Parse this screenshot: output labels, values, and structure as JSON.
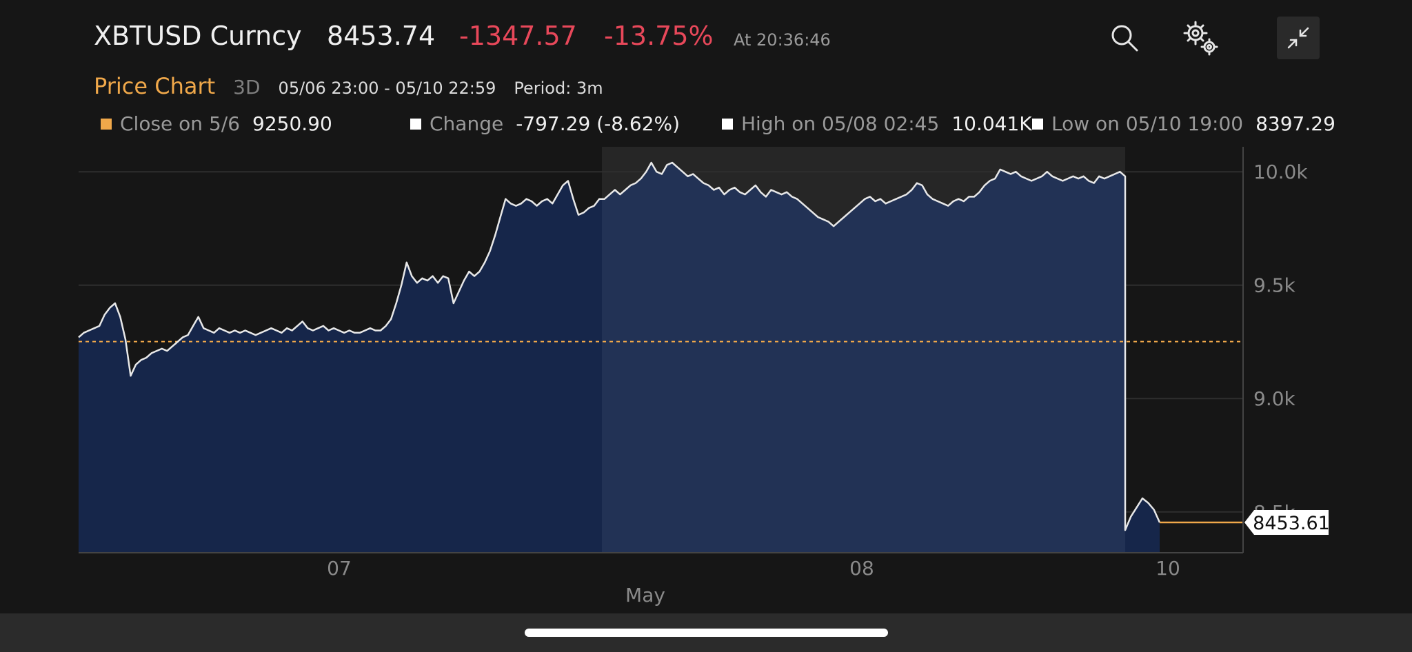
{
  "header": {
    "ticker": "XBTUSD Curncy",
    "price": "8453.74",
    "change_abs": "-1347.57",
    "change_pct": "-13.75%",
    "timestamp": "At 20:36:46",
    "icons": {
      "search": "search-icon",
      "settings": "gears-icon",
      "collapse": "collapse-icon"
    }
  },
  "subheader": {
    "title": "Price Chart",
    "range": "3D",
    "date_range": "05/06 23:00 - 05/10 22:59",
    "period": "Period: 3m"
  },
  "stats": [
    {
      "label": "Close on 5/6",
      "value": "9250.90",
      "color": "#f0a84a"
    },
    {
      "label": "Change",
      "value": "-797.29 (-8.62%)",
      "color": "#ffffff"
    },
    {
      "label": "High on 05/08 02:45",
      "value": "10.041K",
      "color": "#ffffff"
    },
    {
      "label": "Low on 05/10 19:00",
      "value": "8397.29",
      "color": "#ffffff"
    }
  ],
  "colors": {
    "negative": "#e8485a",
    "accent": "#f0a84a",
    "area_fill": "#16264a",
    "highlight_fill": "#223255",
    "line": "#e8e8e8"
  },
  "chart_data": {
    "type": "area",
    "ylim": [
      8320,
      10110
    ],
    "y_ticks": [
      "10.0k",
      "9.5k",
      "9.0k",
      "8.5k"
    ],
    "y_tick_values": [
      10000,
      9500,
      9000,
      8500
    ],
    "x_ticks": [
      "07",
      "08",
      "10"
    ],
    "x_month_label": "May",
    "reference_line": {
      "label": "Close on 5/6",
      "value": 9250.9
    },
    "last_value_label": "8453.61",
    "last_value": 8453.61,
    "series": [
      {
        "values": [
          9270,
          9290,
          9300,
          9310,
          9320,
          9370,
          9400,
          9420,
          9360,
          9260,
          9100,
          9150,
          9170,
          9180,
          9200,
          9210,
          9220,
          9210,
          9230,
          9250,
          9270,
          9280,
          9320,
          9360,
          9310,
          9300,
          9290,
          9310,
          9300,
          9290,
          9300,
          9290,
          9300,
          9290,
          9280,
          9290,
          9300,
          9310,
          9300,
          9290,
          9310,
          9300,
          9320,
          9340,
          9310,
          9300,
          9310,
          9320,
          9300,
          9310,
          9300,
          9290,
          9300,
          9290,
          9290,
          9300,
          9310,
          9300,
          9300,
          9320,
          9350,
          9420,
          9500,
          9600,
          9540,
          9510,
          9530,
          9520,
          9540,
          9510,
          9540,
          9530,
          9420,
          9470,
          9520,
          9560,
          9540,
          9560,
          9600,
          9650,
          9720,
          9800,
          9880,
          9860,
          9850,
          9860,
          9880,
          9870,
          9850,
          9870,
          9880,
          9860,
          9900,
          9940,
          9960,
          9880,
          9810,
          9820,
          9840,
          9850,
          9880,
          9880,
          9900,
          9920,
          9900,
          9920,
          9940,
          9950,
          9970,
          10000,
          10040,
          10000,
          9990,
          10030,
          10040,
          10020,
          10000,
          9980,
          9990,
          9970,
          9950,
          9940,
          9920,
          9930,
          9900,
          9920,
          9930,
          9910,
          9900,
          9920,
          9940,
          9910,
          9890,
          9920,
          9910,
          9900,
          9910,
          9890,
          9880,
          9860,
          9840,
          9820,
          9800,
          9790,
          9780,
          9760,
          9780,
          9800,
          9820,
          9840,
          9860,
          9880,
          9890,
          9870,
          9880,
          9860,
          9870,
          9880,
          9890,
          9900,
          9920,
          9950,
          9940,
          9900,
          9880,
          9870,
          9860,
          9850,
          9870,
          9880,
          9870,
          9890,
          9890,
          9910,
          9940,
          9960,
          9970,
          10010,
          10000,
          9990,
          10000,
          9980,
          9970,
          9960,
          9970,
          9980,
          10000,
          9980,
          9970,
          9960,
          9970,
          9980,
          9970,
          9980,
          9960,
          9950,
          9980,
          9970,
          9980,
          9990,
          10000,
          9980,
          8420,
          8480,
          8520,
          8560,
          8540,
          8510,
          8453.61
        ]
      }
    ]
  },
  "home_indicator": "home-indicator"
}
